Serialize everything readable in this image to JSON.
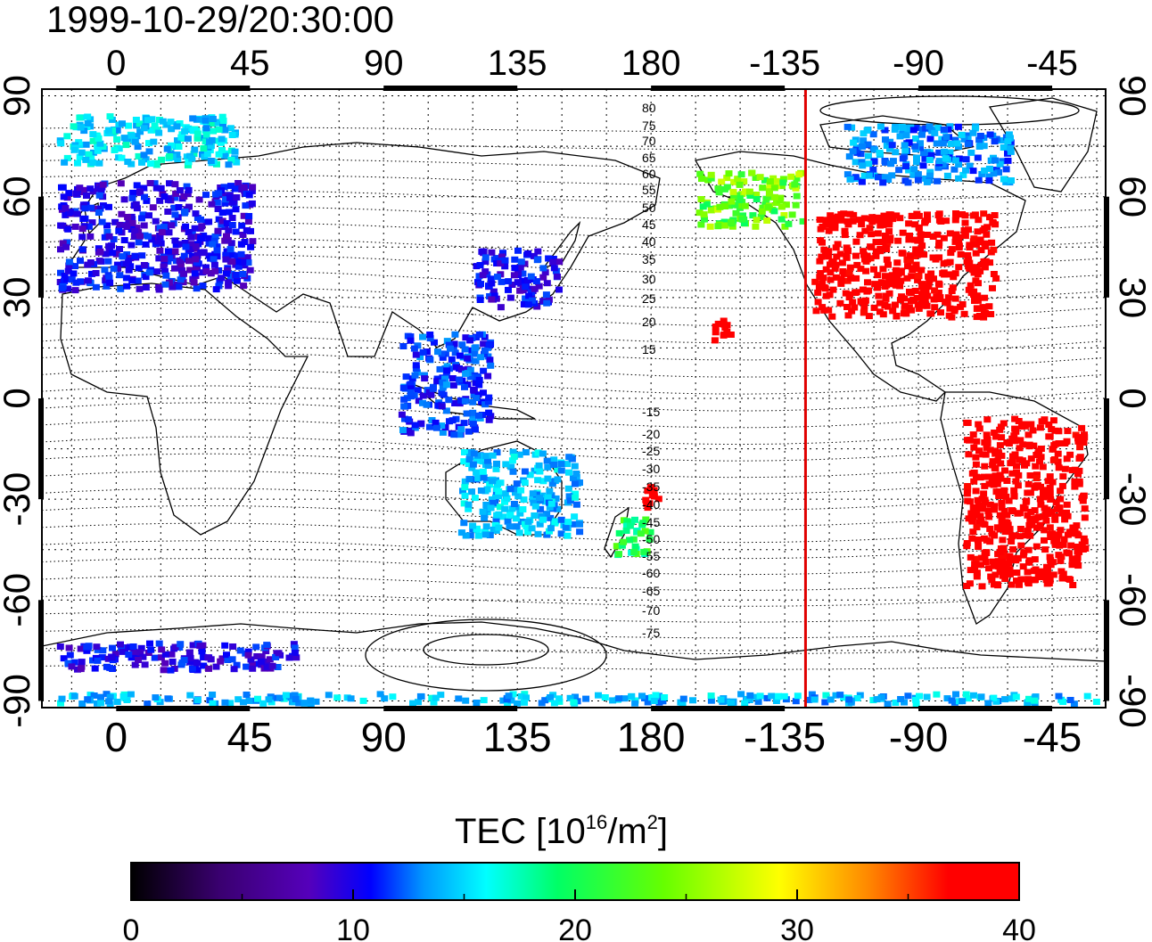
{
  "title": "1999-10-29/20:30:00",
  "map": {
    "lon_ticks": [
      "0",
      "45",
      "90",
      "135",
      "180",
      "-135",
      "-90",
      "-45"
    ],
    "lat_ticks": [
      "90",
      "60",
      "30",
      "0",
      "-30",
      "-60",
      "-90"
    ],
    "lon_range": [
      -25,
      333
    ],
    "lat_range": [
      -92,
      92
    ],
    "terminator_lon": -128,
    "terminator_color": "#e00000",
    "grid": "dotted",
    "contour_labels_north": [
      "80",
      "75",
      "70",
      "65",
      "60",
      "55",
      "50",
      "45",
      "40",
      "35",
      "30",
      "25",
      "20",
      "15"
    ],
    "contour_labels_south": [
      "-15",
      "-20",
      "-25",
      "-30",
      "-35",
      "-40",
      "-45",
      "-50",
      "-55",
      "-60",
      "-65",
      "-70",
      "-75"
    ],
    "tec_regions": [
      {
        "name": "europe",
        "lon": [
          -20,
          45
        ],
        "lat": [
          33,
          65
        ],
        "tec": 10
      },
      {
        "name": "north-atlantic-arctic",
        "lon": [
          -20,
          40
        ],
        "lat": [
          70,
          85
        ],
        "tec": 17
      },
      {
        "name": "east-asia",
        "lon": [
          120,
          148
        ],
        "lat": [
          28,
          45
        ],
        "tec": 10
      },
      {
        "name": "north-america",
        "lon": [
          -126,
          -65
        ],
        "lat": [
          25,
          56
        ],
        "tec": 39
      },
      {
        "name": "alaska",
        "lon": [
          -165,
          -130
        ],
        "lat": [
          52,
          68
        ],
        "tec": 25
      },
      {
        "name": "canada-arctic",
        "lon": [
          -115,
          -60
        ],
        "lat": [
          65,
          82
        ],
        "tec": 14
      },
      {
        "name": "hawaii",
        "lon": [
          -160,
          -154
        ],
        "lat": [
          18,
          24
        ],
        "tec": 39
      },
      {
        "name": "south-america",
        "lon": [
          -75,
          -35
        ],
        "lat": [
          -55,
          -5
        ],
        "tec": 39
      },
      {
        "name": "fiji",
        "lon": [
          175,
          182
        ],
        "lat": [
          -32,
          -25
        ],
        "tec": 39
      },
      {
        "name": "new-zealand",
        "lon": [
          167,
          179
        ],
        "lat": [
          -47,
          -35
        ],
        "tec": 22
      },
      {
        "name": "australia",
        "lon": [
          115,
          155
        ],
        "lat": [
          -40,
          -15
        ],
        "tec": 16
      },
      {
        "name": "southeast-asia",
        "lon": [
          95,
          125
        ],
        "lat": [
          -10,
          20
        ],
        "tec": 12
      },
      {
        "name": "antarctic-coast",
        "lon": [
          -20,
          60
        ],
        "lat": [
          -80,
          -72
        ],
        "tec": 10
      },
      {
        "name": "antarctic-edge",
        "lon": [
          -20,
          333
        ],
        "lat": [
          -90,
          -87
        ],
        "tec": 16
      }
    ]
  },
  "colorbar": {
    "title_prefix": "TEC  [10",
    "title_sup1": "16",
    "title_mid": "/m",
    "title_sup2": "2",
    "title_suffix": "]",
    "min": 0,
    "max": 40,
    "tick_labels": [
      "0",
      "10",
      "20",
      "30",
      "40"
    ],
    "stops": [
      "#000000",
      "#3a0070",
      "#5500bb",
      "#0000ff",
      "#0099ff",
      "#00ffff",
      "#00ff66",
      "#66ff00",
      "#ffff00",
      "#ff8800",
      "#ff0000",
      "#ff0000"
    ]
  }
}
